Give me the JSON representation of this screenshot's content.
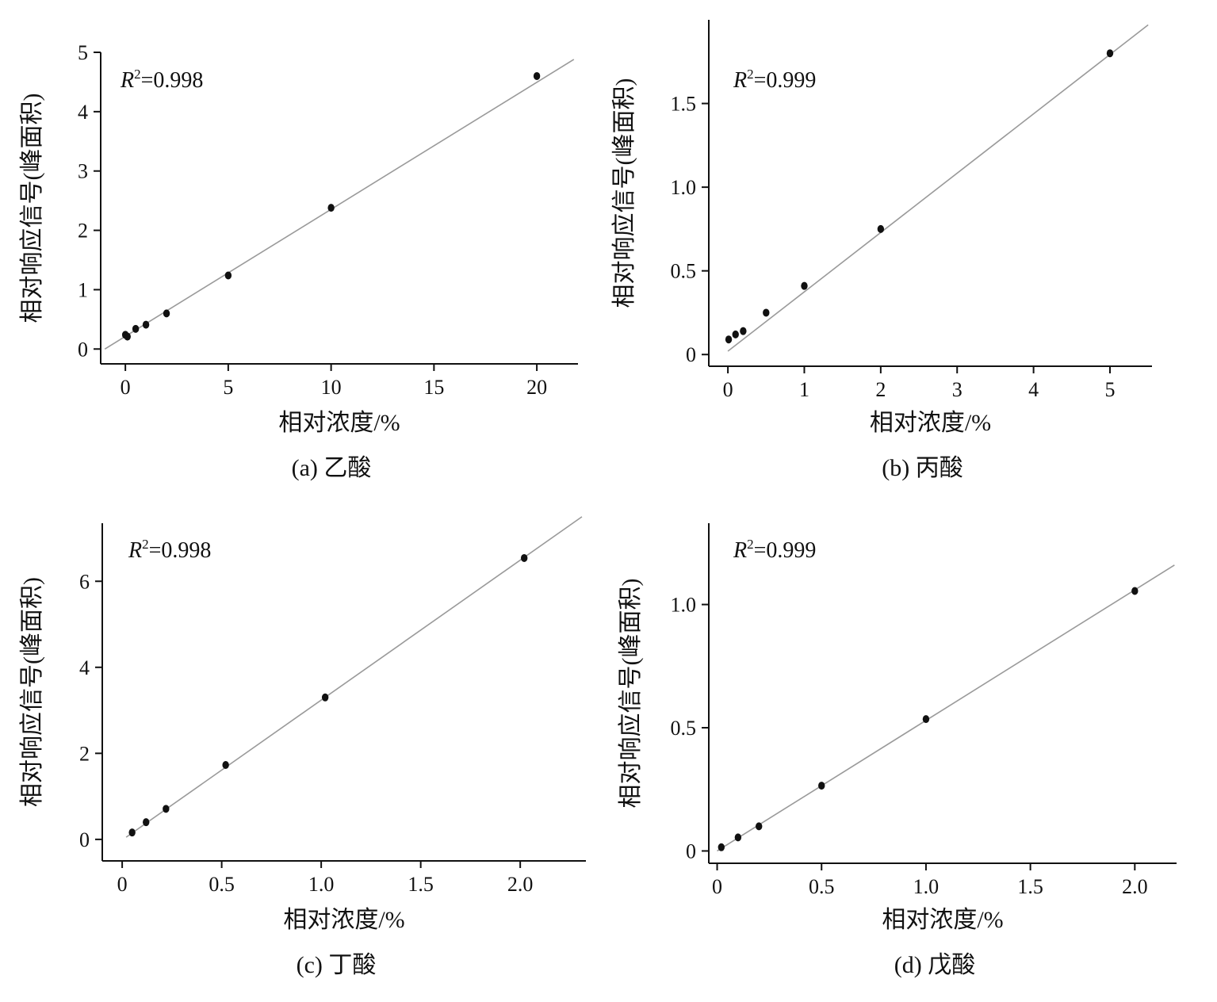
{
  "figure": {
    "background": "#ffffff"
  },
  "chart_data": [
    {
      "type": "scatter",
      "caption": "(a) 乙酸",
      "annotation": {
        "prefix": "R",
        "sup": "2",
        "value": "=0.998"
      },
      "xlabel": "相对浓度/%",
      "ylabel": "相对响应信号(峰面积)",
      "xlim": [
        -1.2,
        22
      ],
      "ylim": [
        -0.25,
        5
      ],
      "xticks": [
        0,
        5,
        10,
        15,
        20
      ],
      "xtick_labels": [
        "0",
        "5",
        "10",
        "15",
        "20"
      ],
      "yticks": [
        0,
        1,
        2,
        3,
        4,
        5
      ],
      "ytick_labels": [
        "0",
        "1",
        "2",
        "3",
        "4",
        "5"
      ],
      "fit_line": {
        "x": [
          -1,
          21.8
        ],
        "y": [
          0.0,
          4.88
        ]
      },
      "points": [
        {
          "x": 0.0,
          "y": 0.24
        },
        {
          "x": 0.1,
          "y": 0.21
        },
        {
          "x": 0.5,
          "y": 0.34
        },
        {
          "x": 1.0,
          "y": 0.41
        },
        {
          "x": 2.0,
          "y": 0.6
        },
        {
          "x": 5.0,
          "y": 1.24
        },
        {
          "x": 10.0,
          "y": 2.38
        },
        {
          "x": 20.0,
          "y": 4.6
        }
      ],
      "point_color": "#111111",
      "line_color": "#9a9a9a",
      "grid": false
    },
    {
      "type": "scatter",
      "caption": "(b) 丙酸",
      "annotation": {
        "prefix": "R",
        "sup": "2",
        "value": "=0.999"
      },
      "xlabel": "相对浓度/%",
      "ylabel": "相对响应信号(峰面积)",
      "xlim": [
        -0.25,
        5.55
      ],
      "ylim": [
        -0.07,
        2.0
      ],
      "xticks": [
        0,
        1,
        2,
        3,
        4,
        5
      ],
      "xtick_labels": [
        "0",
        "1",
        "2",
        "3",
        "4",
        "5"
      ],
      "yticks": [
        0,
        0.5,
        1.0,
        1.5
      ],
      "ytick_labels": [
        "0",
        "0.5",
        "1.0",
        "1.5"
      ],
      "fit_line": {
        "x": [
          0.0,
          5.5
        ],
        "y": [
          0.02,
          1.97
        ]
      },
      "points": [
        {
          "x": 0.01,
          "y": 0.09
        },
        {
          "x": 0.1,
          "y": 0.12
        },
        {
          "x": 0.2,
          "y": 0.14
        },
        {
          "x": 0.5,
          "y": 0.25
        },
        {
          "x": 1.0,
          "y": 0.41
        },
        {
          "x": 2.0,
          "y": 0.75
        },
        {
          "x": 5.0,
          "y": 1.8
        }
      ],
      "point_color": "#111111",
      "line_color": "#9a9a9a",
      "grid": false
    },
    {
      "type": "scatter",
      "caption": "(c) 丁酸",
      "annotation": {
        "prefix": "R",
        "sup": "2",
        "value": "=0.998"
      },
      "xlabel": "相对浓度/%",
      "ylabel": "相对响应信号(峰面积)",
      "xlim": [
        -0.1,
        2.33
      ],
      "ylim": [
        -0.5,
        7.35
      ],
      "xticks": [
        0,
        0.5,
        1.0,
        1.5,
        2.0
      ],
      "xtick_labels": [
        "0",
        "0.5",
        "1.0",
        "1.5",
        "2.0"
      ],
      "yticks": [
        0,
        2,
        4,
        6
      ],
      "ytick_labels": [
        "0",
        "2",
        "4",
        "6"
      ],
      "fit_line": {
        "x": [
          0.02,
          2.31
        ],
        "y": [
          0.05,
          7.5
        ]
      },
      "points": [
        {
          "x": 0.05,
          "y": 0.16
        },
        {
          "x": 0.12,
          "y": 0.4
        },
        {
          "x": 0.22,
          "y": 0.71
        },
        {
          "x": 0.52,
          "y": 1.73
        },
        {
          "x": 1.02,
          "y": 3.3
        },
        {
          "x": 2.02,
          "y": 6.54
        }
      ],
      "point_color": "#111111",
      "line_color": "#9a9a9a",
      "grid": false
    },
    {
      "type": "scatter",
      "caption": "(d) 戊酸",
      "annotation": {
        "prefix": "R",
        "sup": "2",
        "value": "=0.999"
      },
      "xlabel": "相对浓度/%",
      "ylabel": "相对响应信号(峰面积)",
      "xlim": [
        -0.04,
        2.2
      ],
      "ylim": [
        -0.05,
        1.33
      ],
      "xticks": [
        0,
        0.5,
        1.0,
        1.5,
        2.0
      ],
      "xtick_labels": [
        "0",
        "0.5",
        "1.0",
        "1.5",
        "2.0"
      ],
      "yticks": [
        0,
        0.5,
        1.0
      ],
      "ytick_labels": [
        "0",
        "0.5",
        "1.0"
      ],
      "fit_line": {
        "x": [
          0.0,
          2.19
        ],
        "y": [
          0.0,
          1.16
        ]
      },
      "points": [
        {
          "x": 0.02,
          "y": 0.015
        },
        {
          "x": 0.1,
          "y": 0.055
        },
        {
          "x": 0.2,
          "y": 0.1
        },
        {
          "x": 0.5,
          "y": 0.265
        },
        {
          "x": 1.0,
          "y": 0.535
        },
        {
          "x": 2.0,
          "y": 1.055
        }
      ],
      "point_color": "#111111",
      "line_color": "#9a9a9a",
      "grid": false
    }
  ]
}
